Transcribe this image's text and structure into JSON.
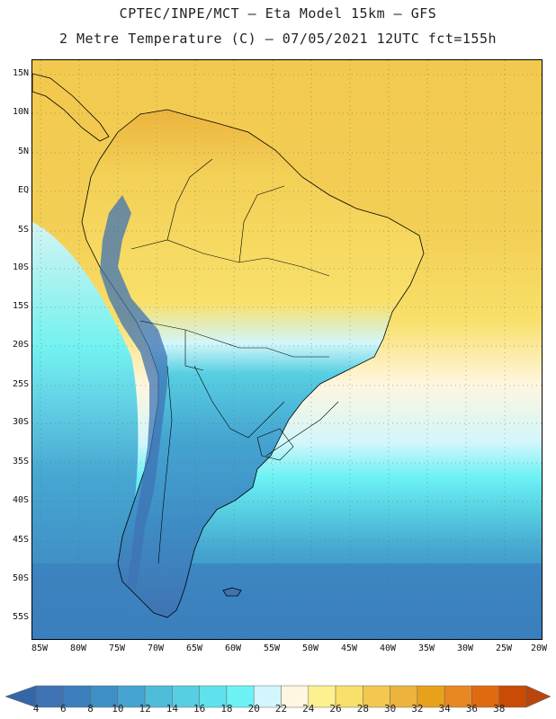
{
  "header": {
    "line1": "CPTEC/INPE/MCT –  Eta Model 15km – GFS",
    "line2": "2 Metre Temperature (C) – 07/05/2021 12UTC fct=155h"
  },
  "map": {
    "lat_labels": [
      "15N",
      "10N",
      "5N",
      "EQ",
      "5S",
      "10S",
      "15S",
      "20S",
      "25S",
      "30S",
      "35S",
      "40S",
      "45S",
      "50S",
      "55S"
    ],
    "lon_labels": [
      "85W",
      "80W",
      "75W",
      "70W",
      "65W",
      "60W",
      "55W",
      "50W",
      "45W",
      "40W",
      "35W",
      "30W",
      "25W",
      "20W"
    ],
    "lat_range": [
      15,
      -55
    ],
    "lon_range": [
      -85,
      -20
    ]
  },
  "colorbar": {
    "labels": [
      "4",
      "6",
      "8",
      "10",
      "12",
      "14",
      "16",
      "18",
      "20",
      "22",
      "24",
      "26",
      "28",
      "30",
      "32",
      "34",
      "36",
      "38"
    ],
    "colors": [
      "#3f73b4",
      "#3b7fbd",
      "#3e8fc6",
      "#45a4d0",
      "#4fbcd9",
      "#57cfe2",
      "#5fe2ec",
      "#6cf2f5",
      "#d2f6fb",
      "#fff6df",
      "#fdf08e",
      "#f8e06a",
      "#f2c94e",
      "#ecb43f",
      "#e8a11b",
      "#e88822",
      "#e06a10",
      "#c94b06"
    ],
    "low_end_color": "#3566a8",
    "high_end_color": "#b8460c"
  }
}
